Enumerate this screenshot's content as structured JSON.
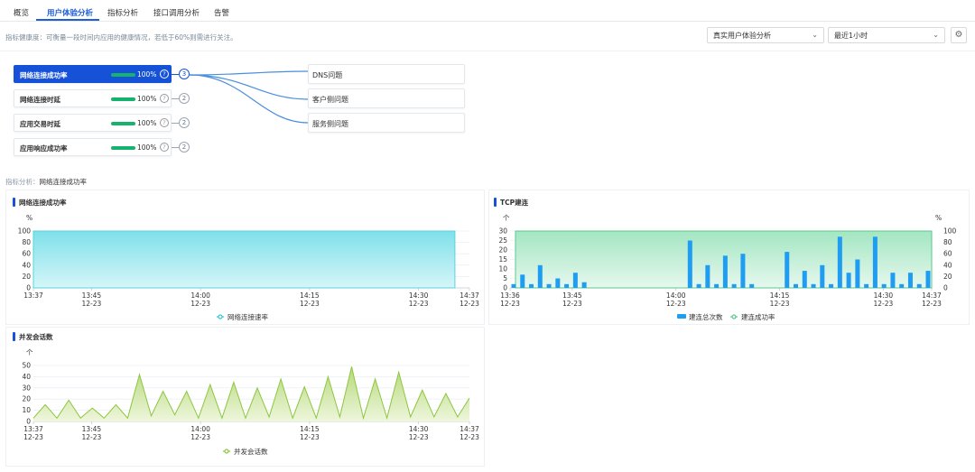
{
  "tabs": [
    {
      "label": "概览",
      "active": false
    },
    {
      "label": "用户体验分析",
      "active": true
    },
    {
      "label": "指标分析",
      "active": false
    },
    {
      "label": "接口调用分析",
      "active": false
    },
    {
      "label": "告警",
      "active": false
    }
  ],
  "hint_text": "指标健康度：可衡量一段时间内应用的健康情况，若低于60%则需进行关注。",
  "filters": {
    "analysis_type": "真实用户体验分析",
    "time_range": "最近1小时"
  },
  "metrics": [
    {
      "name": "网络连接成功率",
      "value": "100%",
      "progress": 1.0,
      "sub_count": "3",
      "active": true
    },
    {
      "name": "网络连接时延",
      "value": "100%",
      "progress": 1.0,
      "sub_count": "2",
      "active": false
    },
    {
      "name": "应用交易时延",
      "value": "100%",
      "progress": 1.0,
      "sub_count": "2",
      "active": false
    },
    {
      "name": "应用响应成功率",
      "value": "100%",
      "progress": 1.0,
      "sub_count": "2",
      "active": false
    }
  ],
  "sub_issues": [
    "DNS问题",
    "客户侧问题",
    "服务侧问题"
  ],
  "analysis": {
    "label": "指标分析：",
    "value": "网络连接成功率"
  },
  "colors": {
    "accent": "#1652d8",
    "success": "#16b36e"
  },
  "chart_data": [
    {
      "type": "area",
      "title": "网络连接成功率",
      "ylabel": "%",
      "ylim": [
        0,
        100
      ],
      "yticks": [
        "100",
        "80",
        "60",
        "40",
        "20",
        "0"
      ],
      "x_ticks": [
        {
          "t": 0,
          "time": "13:37",
          "date": ""
        },
        {
          "t": 8,
          "time": "13:45",
          "date": "12-23"
        },
        {
          "t": 23,
          "time": "14:00",
          "date": "12-23"
        },
        {
          "t": 38,
          "time": "14:15",
          "date": "12-23"
        },
        {
          "t": 53,
          "time": "14:30",
          "date": "12-23"
        },
        {
          "t": 60,
          "time": "14:37",
          "date": "12-23"
        }
      ],
      "series": [
        {
          "name": "网络连接速率",
          "values": [
            100,
            100
          ],
          "x_span": [
            0,
            58
          ]
        }
      ]
    },
    {
      "type": "bar",
      "title": "TCP建连",
      "ylabel": "个",
      "y2label": "%",
      "ylim": [
        0,
        30
      ],
      "yticks": [
        "30",
        "25",
        "20",
        "15",
        "10",
        "5",
        "0"
      ],
      "y2lim": [
        0,
        100
      ],
      "y2ticks": [
        "100",
        "80",
        "60",
        "40",
        "20",
        "0"
      ],
      "x_ticks": [
        {
          "t": 0,
          "time": "13:36",
          "date": "12-23"
        },
        {
          "t": 9,
          "time": "13:45",
          "date": "12-23"
        },
        {
          "t": 24,
          "time": "14:00",
          "date": "12-23"
        },
        {
          "t": 39,
          "time": "14:15",
          "date": "12-23"
        },
        {
          "t": 54,
          "time": "14:30",
          "date": "12-23"
        },
        {
          "t": 61,
          "time": "14:37",
          "date": "12-23"
        }
      ],
      "bars": [
        2,
        7,
        2,
        12,
        2,
        5,
        2,
        8,
        3,
        0,
        0,
        0,
        0,
        0,
        0,
        0,
        0,
        0,
        0,
        0,
        25,
        2,
        12,
        2,
        17,
        2,
        18,
        2,
        0,
        0,
        0,
        19,
        2,
        9,
        2,
        12,
        2,
        27,
        8,
        15,
        2,
        27,
        2,
        8,
        2,
        8,
        2,
        9
      ],
      "series": [
        {
          "name": "建连总次数",
          "kind": "bar"
        },
        {
          "name": "建连成功率",
          "kind": "area",
          "values": [
            100,
            100
          ]
        }
      ]
    },
    {
      "type": "area",
      "title": "并发会话数",
      "ylabel": "个",
      "ylim": [
        0,
        50
      ],
      "yticks": [
        "50",
        "40",
        "30",
        "20",
        "10",
        "0"
      ],
      "x_ticks": [
        {
          "t": 0,
          "time": "13:37",
          "date": "12-23"
        },
        {
          "t": 8,
          "time": "13:45",
          "date": "12-23"
        },
        {
          "t": 23,
          "time": "14:00",
          "date": "12-23"
        },
        {
          "t": 38,
          "time": "14:15",
          "date": "12-23"
        },
        {
          "t": 53,
          "time": "14:30",
          "date": "12-23"
        },
        {
          "t": 60,
          "time": "14:37",
          "date": "12-23"
        }
      ],
      "series": [
        {
          "name": "并发会话数",
          "values": [
            3,
            15,
            3,
            19,
            3,
            12,
            3,
            15,
            3,
            42,
            5,
            27,
            6,
            27,
            3,
            33,
            3,
            35,
            3,
            30,
            4,
            38,
            3,
            31,
            3,
            40,
            4,
            49,
            3,
            38,
            3,
            44,
            4,
            28,
            4,
            25,
            4,
            21
          ]
        }
      ]
    }
  ]
}
